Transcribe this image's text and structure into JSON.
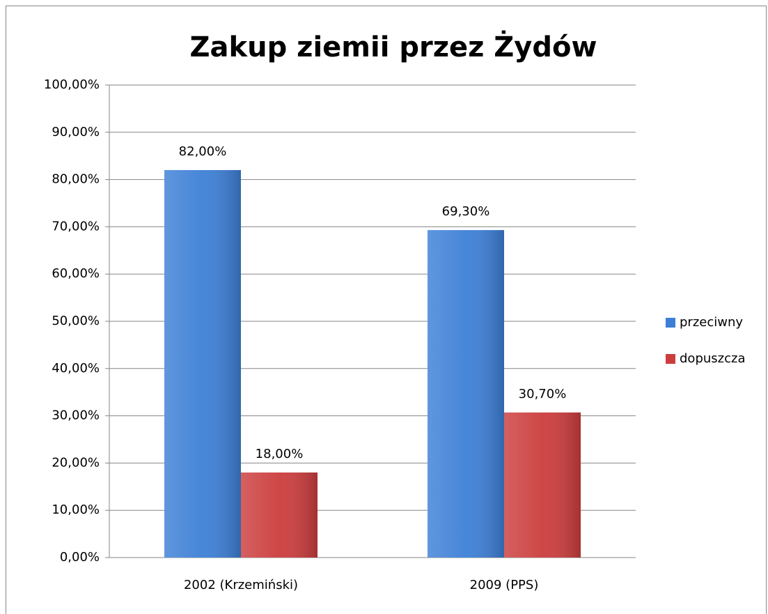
{
  "chart_data": {
    "type": "bar",
    "title": "Zakup ziemii przez Żydów",
    "categories": [
      "2002 (Krzemiński)",
      "2009 (PPS)"
    ],
    "series": [
      {
        "name": "przeciwny",
        "color": "#3d7fd6",
        "values": [
          82,
          69.3
        ],
        "value_labels": [
          "82,00%",
          "69,30%"
        ]
      },
      {
        "name": "dopuszcza",
        "color": "#cc3d3d",
        "values": [
          18,
          30.7
        ],
        "value_labels": [
          "18,00%",
          "30,70%"
        ]
      }
    ],
    "ylim": [
      0,
      100
    ],
    "yticks": [
      {
        "value": 0,
        "label": "0,00%"
      },
      {
        "value": 10,
        "label": "10,00%"
      },
      {
        "value": 20,
        "label": "20,00%"
      },
      {
        "value": 30,
        "label": "30,00%"
      },
      {
        "value": 40,
        "label": "40,00%"
      },
      {
        "value": 50,
        "label": "50,00%"
      },
      {
        "value": 60,
        "label": "60,00%"
      },
      {
        "value": 70,
        "label": "70,00%"
      },
      {
        "value": 80,
        "label": "80,00%"
      },
      {
        "value": 90,
        "label": "90,00%"
      },
      {
        "value": 100,
        "label": "100,00%"
      }
    ],
    "grid": true,
    "legend": "right"
  }
}
